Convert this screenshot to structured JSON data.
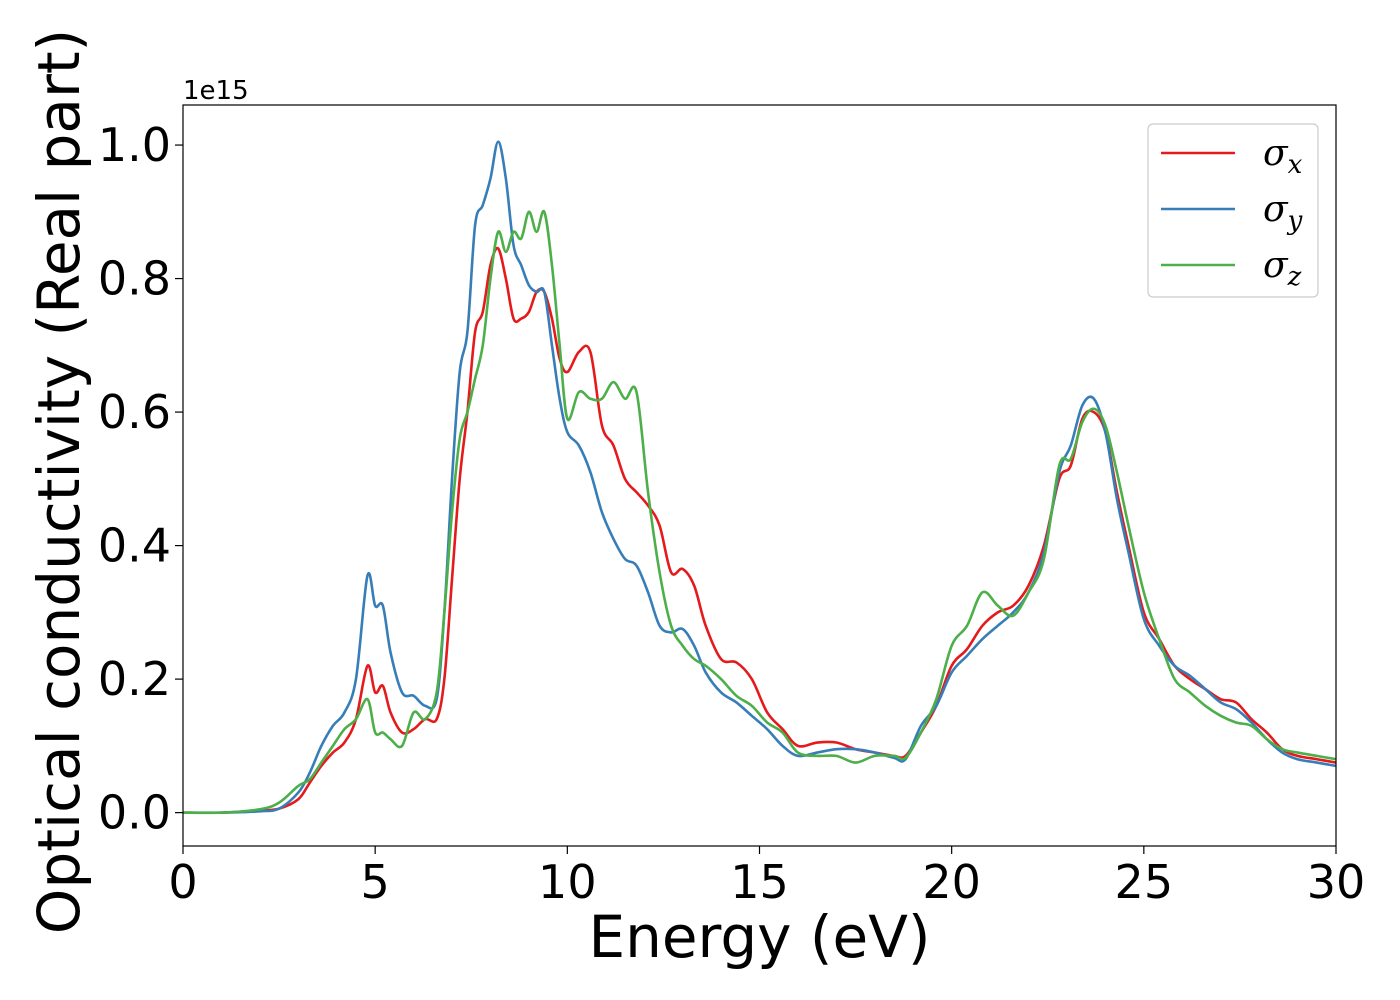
{
  "chart_data": {
    "type": "line",
    "xlabel": "Energy (eV)",
    "ylabel": "Optical conductivity (Real part)",
    "offset_text": "1e15",
    "xlim": [
      0,
      30
    ],
    "ylim": [
      -0.05,
      1.06
    ],
    "xticks": [
      0,
      5,
      10,
      15,
      20,
      25,
      30
    ],
    "xtick_labels": [
      "0",
      "5",
      "10",
      "15",
      "20",
      "25",
      "30"
    ],
    "yticks": [
      0.0,
      0.2,
      0.4,
      0.6,
      0.8,
      1.0
    ],
    "ytick_labels": [
      "0.0",
      "0.2",
      "0.4",
      "0.6",
      "0.8",
      "1.0"
    ],
    "grid": false,
    "legend_position": "upper right",
    "series": [
      {
        "name": "σx",
        "legend_base": "σ",
        "legend_sub": "x",
        "color": "#e41a1c",
        "x": [
          0,
          1,
          2,
          2.5,
          3,
          3.3,
          3.6,
          3.9,
          4.2,
          4.5,
          4.8,
          5.0,
          5.2,
          5.4,
          5.7,
          6.0,
          6.3,
          6.6,
          6.8,
          7.0,
          7.2,
          7.4,
          7.6,
          7.8,
          8.0,
          8.2,
          8.4,
          8.6,
          8.8,
          9.0,
          9.2,
          9.4,
          9.6,
          9.8,
          10.0,
          10.3,
          10.6,
          10.9,
          11.2,
          11.5,
          11.8,
          12.1,
          12.4,
          12.7,
          13.0,
          13.3,
          13.6,
          14.0,
          14.4,
          14.8,
          15.2,
          15.6,
          16.0,
          16.5,
          17.0,
          17.5,
          18.0,
          18.5,
          18.8,
          19.2,
          19.6,
          20.0,
          20.4,
          20.8,
          21.2,
          21.6,
          22.0,
          22.4,
          22.8,
          23.1,
          23.4,
          23.7,
          24.0,
          24.3,
          24.6,
          25.0,
          25.4,
          25.8,
          26.2,
          26.6,
          27.0,
          27.4,
          27.8,
          28.2,
          28.6,
          29.0,
          29.5,
          30.0
        ],
        "y": [
          0.0,
          0.0,
          0.003,
          0.006,
          0.02,
          0.045,
          0.07,
          0.09,
          0.105,
          0.14,
          0.22,
          0.18,
          0.19,
          0.15,
          0.12,
          0.125,
          0.14,
          0.14,
          0.2,
          0.35,
          0.5,
          0.6,
          0.72,
          0.75,
          0.82,
          0.845,
          0.8,
          0.74,
          0.74,
          0.75,
          0.78,
          0.78,
          0.74,
          0.68,
          0.66,
          0.69,
          0.69,
          0.58,
          0.55,
          0.5,
          0.48,
          0.46,
          0.43,
          0.36,
          0.365,
          0.34,
          0.28,
          0.23,
          0.225,
          0.2,
          0.15,
          0.125,
          0.1,
          0.105,
          0.105,
          0.095,
          0.09,
          0.085,
          0.085,
          0.12,
          0.16,
          0.22,
          0.245,
          0.28,
          0.3,
          0.31,
          0.34,
          0.4,
          0.5,
          0.52,
          0.59,
          0.6,
          0.57,
          0.48,
          0.4,
          0.3,
          0.26,
          0.22,
          0.2,
          0.185,
          0.17,
          0.165,
          0.14,
          0.12,
          0.095,
          0.085,
          0.08,
          0.075
        ]
      },
      {
        "name": "σy",
        "legend_base": "σ",
        "legend_sub": "y",
        "color": "#377eb8",
        "x": [
          0,
          1,
          2,
          2.5,
          3,
          3.3,
          3.6,
          3.9,
          4.2,
          4.5,
          4.8,
          5.0,
          5.2,
          5.4,
          5.7,
          6.0,
          6.3,
          6.6,
          6.8,
          7.0,
          7.2,
          7.4,
          7.6,
          7.8,
          8.0,
          8.2,
          8.4,
          8.6,
          8.8,
          9.0,
          9.2,
          9.4,
          9.6,
          9.8,
          10.0,
          10.3,
          10.6,
          10.9,
          11.2,
          11.5,
          11.8,
          12.1,
          12.4,
          12.7,
          13.0,
          13.3,
          13.6,
          14.0,
          14.4,
          14.8,
          15.2,
          15.6,
          16.0,
          16.5,
          17.0,
          17.5,
          18.0,
          18.5,
          18.8,
          19.2,
          19.6,
          20.0,
          20.4,
          20.8,
          21.2,
          21.6,
          22.0,
          22.4,
          22.8,
          23.1,
          23.4,
          23.7,
          24.0,
          24.3,
          24.6,
          25.0,
          25.4,
          25.8,
          26.2,
          26.6,
          27.0,
          27.4,
          27.8,
          28.2,
          28.6,
          29.0,
          29.5,
          30.0
        ],
        "y": [
          0.0,
          0.0,
          0.002,
          0.006,
          0.03,
          0.06,
          0.1,
          0.13,
          0.15,
          0.2,
          0.355,
          0.31,
          0.31,
          0.24,
          0.18,
          0.175,
          0.16,
          0.17,
          0.3,
          0.5,
          0.66,
          0.72,
          0.88,
          0.91,
          0.95,
          1.005,
          0.95,
          0.85,
          0.82,
          0.79,
          0.78,
          0.78,
          0.7,
          0.62,
          0.57,
          0.55,
          0.51,
          0.45,
          0.41,
          0.38,
          0.37,
          0.33,
          0.28,
          0.27,
          0.275,
          0.25,
          0.21,
          0.18,
          0.165,
          0.145,
          0.125,
          0.1,
          0.085,
          0.09,
          0.095,
          0.095,
          0.09,
          0.082,
          0.08,
          0.13,
          0.16,
          0.21,
          0.235,
          0.26,
          0.28,
          0.3,
          0.33,
          0.39,
          0.51,
          0.55,
          0.61,
          0.62,
          0.57,
          0.47,
          0.39,
          0.29,
          0.25,
          0.22,
          0.205,
          0.185,
          0.165,
          0.155,
          0.135,
          0.11,
          0.09,
          0.08,
          0.075,
          0.07
        ]
      },
      {
        "name": "σz",
        "legend_base": "σ",
        "legend_sub": "z",
        "color": "#4daf4a",
        "x": [
          0,
          1,
          2,
          2.5,
          3,
          3.3,
          3.6,
          3.9,
          4.2,
          4.5,
          4.8,
          5.0,
          5.2,
          5.4,
          5.7,
          6.0,
          6.3,
          6.6,
          6.8,
          7.0,
          7.2,
          7.4,
          7.6,
          7.8,
          8.0,
          8.2,
          8.4,
          8.6,
          8.8,
          9.0,
          9.2,
          9.4,
          9.6,
          9.8,
          10.0,
          10.3,
          10.6,
          10.9,
          11.2,
          11.5,
          11.8,
          12.1,
          12.4,
          12.7,
          13.0,
          13.3,
          13.6,
          14.0,
          14.4,
          14.8,
          15.2,
          15.6,
          16.0,
          16.5,
          17.0,
          17.5,
          18.0,
          18.5,
          18.8,
          19.2,
          19.6,
          20.0,
          20.4,
          20.8,
          21.2,
          21.6,
          22.0,
          22.4,
          22.8,
          23.1,
          23.4,
          23.7,
          24.0,
          24.3,
          24.6,
          25.0,
          25.4,
          25.8,
          26.2,
          26.6,
          27.0,
          27.4,
          27.8,
          28.2,
          28.6,
          29.0,
          29.5,
          30.0
        ],
        "y": [
          0.0,
          0.0,
          0.005,
          0.015,
          0.04,
          0.05,
          0.075,
          0.1,
          0.125,
          0.14,
          0.17,
          0.12,
          0.12,
          0.11,
          0.1,
          0.15,
          0.14,
          0.18,
          0.3,
          0.45,
          0.56,
          0.6,
          0.65,
          0.7,
          0.8,
          0.87,
          0.84,
          0.87,
          0.86,
          0.9,
          0.87,
          0.9,
          0.82,
          0.7,
          0.59,
          0.63,
          0.62,
          0.62,
          0.645,
          0.62,
          0.63,
          0.48,
          0.36,
          0.28,
          0.25,
          0.23,
          0.22,
          0.2,
          0.175,
          0.16,
          0.135,
          0.12,
          0.09,
          0.085,
          0.085,
          0.075,
          0.085,
          0.085,
          0.082,
          0.12,
          0.17,
          0.25,
          0.28,
          0.33,
          0.31,
          0.295,
          0.33,
          0.38,
          0.52,
          0.53,
          0.585,
          0.605,
          0.58,
          0.51,
          0.43,
          0.33,
          0.26,
          0.2,
          0.18,
          0.16,
          0.145,
          0.135,
          0.13,
          0.11,
          0.095,
          0.09,
          0.085,
          0.08
        ]
      }
    ]
  }
}
